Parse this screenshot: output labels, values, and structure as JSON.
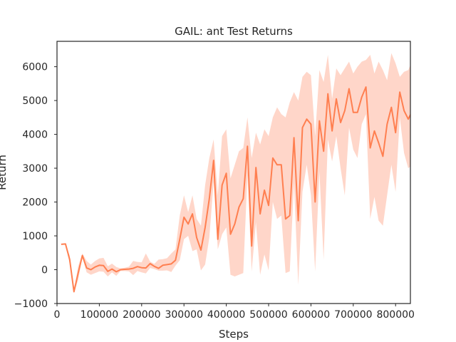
{
  "chart_data": {
    "type": "line",
    "title": "GAIL: ant Test Returns",
    "xlabel": "Steps",
    "ylabel": "Return",
    "xlim": [
      0,
      835000
    ],
    "ylim": [
      -1000,
      6750
    ],
    "xticks": [
      0,
      100000,
      200000,
      300000,
      400000,
      500000,
      600000,
      700000,
      800000
    ],
    "xtick_labels": [
      "0",
      "100000",
      "200000",
      "300000",
      "400000",
      "500000",
      "600000",
      "700000",
      "800000"
    ],
    "yticks": [
      -1000,
      0,
      1000,
      2000,
      3000,
      4000,
      5000,
      6000
    ],
    "ytick_labels": [
      "−1000",
      "0",
      "1000",
      "2000",
      "3000",
      "4000",
      "5000",
      "6000"
    ],
    "grid": false,
    "colors": {
      "line": "#ff7f50",
      "band": "#ffb59c"
    },
    "series": [
      {
        "x": [
          10000,
          20000,
          30000,
          40000,
          50000,
          60000,
          70000,
          80000,
          90000,
          100000,
          110000,
          120000,
          130000,
          140000,
          150000,
          160000,
          170000,
          180000,
          190000,
          200000,
          210000,
          220000,
          230000,
          240000,
          250000,
          260000,
          270000,
          280000,
          290000,
          300000,
          310000,
          320000,
          330000,
          340000,
          350000,
          360000,
          370000,
          380000,
          390000,
          400000,
          410000,
          420000,
          430000,
          440000,
          450000,
          460000,
          470000,
          480000,
          490000,
          500000,
          510000,
          520000,
          530000,
          540000,
          550000,
          560000,
          570000,
          580000,
          590000,
          600000,
          610000,
          620000,
          630000,
          640000,
          650000,
          660000,
          670000,
          680000,
          690000,
          700000,
          710000,
          720000,
          730000,
          740000,
          750000,
          760000,
          770000,
          780000,
          790000,
          800000,
          810000,
          820000,
          830000,
          840000
        ],
        "y": [
          750,
          760,
          300,
          -650,
          -100,
          420,
          50,
          0,
          80,
          130,
          120,
          -50,
          20,
          -60,
          0,
          10,
          20,
          40,
          90,
          60,
          50,
          180,
          100,
          40,
          130,
          150,
          170,
          280,
          900,
          1550,
          1350,
          1650,
          950,
          580,
          1250,
          2100,
          3230,
          900,
          2500,
          2850,
          1050,
          1350,
          1850,
          2100,
          3650,
          700,
          3020,
          1650,
          2350,
          1900,
          3300,
          3100,
          3100,
          1500,
          1600,
          3900,
          1450,
          4200,
          4450,
          4300,
          2000,
          4400,
          3500,
          5200,
          4100,
          5050,
          4350,
          4700,
          5350,
          4650,
          4650,
          5100,
          5400,
          3600,
          4100,
          3750,
          3350,
          4300,
          4800,
          4050,
          5250,
          4700,
          4450,
          4700
        ],
        "upper": [
          760,
          780,
          420,
          -600,
          100,
          480,
          260,
          150,
          260,
          330,
          350,
          100,
          180,
          80,
          40,
          60,
          90,
          260,
          230,
          220,
          480,
          240,
          170,
          300,
          310,
          340,
          480,
          600,
          1600,
          2200,
          1700,
          2200,
          1500,
          1300,
          2500,
          3300,
          3850,
          2200,
          3950,
          4150,
          2700,
          3100,
          3500,
          3600,
          4500,
          3300,
          4050,
          3700,
          4150,
          3950,
          4500,
          4800,
          4600,
          4500,
          4950,
          5250,
          5000,
          5700,
          5850,
          5750,
          3950,
          5900,
          5550,
          6350,
          5050,
          5950,
          5750,
          5950,
          6150,
          5800,
          6000,
          6150,
          6200,
          6350,
          5800,
          6150,
          5900,
          5600,
          6400,
          6100,
          5700,
          5850,
          5900,
          6200
        ],
        "lower": [
          740,
          740,
          180,
          -700,
          -300,
          360,
          -80,
          -150,
          -100,
          -50,
          -60,
          -200,
          -80,
          -180,
          -40,
          -40,
          -50,
          -160,
          -40,
          -80,
          -110,
          50,
          20,
          -30,
          -30,
          -20,
          -70,
          120,
          280,
          900,
          1000,
          550,
          600,
          -20,
          150,
          950,
          2600,
          600,
          1050,
          1250,
          -150,
          -200,
          -150,
          -100,
          2800,
          -50,
          1400,
          -150,
          450,
          -20,
          2000,
          1500,
          1600,
          -100,
          -50,
          2550,
          -450,
          2300,
          3100,
          2200,
          -50,
          2900,
          300,
          3850,
          3200,
          3950,
          3000,
          2200,
          4200,
          3550,
          3300,
          4300,
          4600,
          1500,
          2150,
          1450,
          1300,
          2200,
          3100,
          2300,
          4500,
          3450,
          3000,
          3100
        ]
      }
    ]
  }
}
